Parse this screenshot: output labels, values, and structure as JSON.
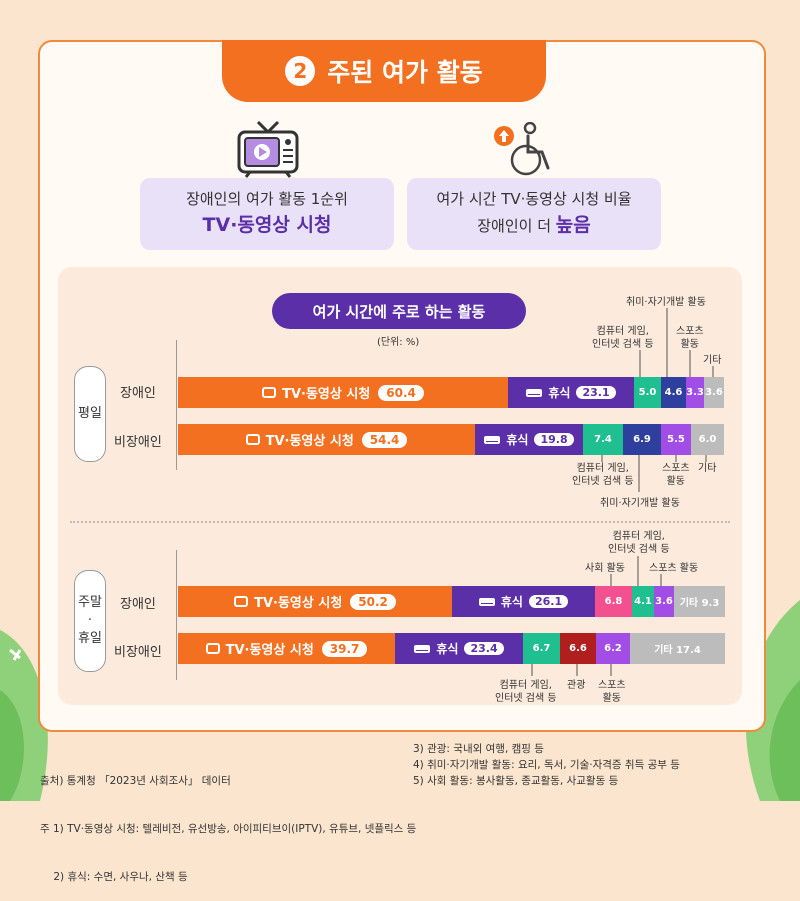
{
  "header": {
    "number": "2",
    "title": "주된 여가 활동"
  },
  "info_boxes": [
    {
      "line1": "장애인의 여가 활동 1순위",
      "line2": "TV·동영상 시청"
    },
    {
      "line1": "여가 시간 TV·동영상 시청 비율",
      "line2_pre": "장애인이 더 ",
      "line2_em": "높음"
    }
  ],
  "chart_data": {
    "type": "bar",
    "stacked": true,
    "orientation": "horizontal",
    "title": "여가 시간에 주로 하는 활동",
    "unit": "(단위: %)",
    "groups": [
      {
        "name": "평일",
        "rows": [
          {
            "name": "장애인",
            "segments": [
              {
                "label": "TV·동영상 시청",
                "value": 60.4,
                "color": "#f37021"
              },
              {
                "label": "휴식",
                "value": 23.1,
                "color": "#5b2fa8"
              },
              {
                "label": "컴퓨터 게임, 인터넷 검색 등",
                "value": 5.0,
                "color": "#1fbf8f"
              },
              {
                "label": "취미·자기개발 활동",
                "value": 4.6,
                "color": "#2e3f9e"
              },
              {
                "label": "스포츠 활동",
                "value": 3.3,
                "color": "#a24ee6"
              },
              {
                "label": "기타",
                "value": 3.6,
                "color": "#bcbcbc"
              }
            ]
          },
          {
            "name": "비장애인",
            "segments": [
              {
                "label": "TV·동영상 시청",
                "value": 54.4,
                "color": "#f37021"
              },
              {
                "label": "휴식",
                "value": 19.8,
                "color": "#5b2fa8"
              },
              {
                "label": "컴퓨터 게임, 인터넷 검색 등",
                "value": 7.4,
                "color": "#1fbf8f"
              },
              {
                "label": "취미·자기개발 활동",
                "value": 6.9,
                "color": "#2e3f9e"
              },
              {
                "label": "스포츠 활동",
                "value": 5.5,
                "color": "#a24ee6"
              },
              {
                "label": "기타",
                "value": 6.0,
                "color": "#bcbcbc"
              }
            ]
          }
        ]
      },
      {
        "name": "주말·휴일",
        "rows": [
          {
            "name": "장애인",
            "segments": [
              {
                "label": "TV·동영상 시청",
                "value": 50.2,
                "color": "#f37021"
              },
              {
                "label": "휴식",
                "value": 26.1,
                "color": "#5b2fa8"
              },
              {
                "label": "사회 활동",
                "value": 6.8,
                "color": "#f2508f"
              },
              {
                "label": "컴퓨터 게임, 인터넷 검색 등",
                "value": 4.1,
                "color": "#1fbf8f"
              },
              {
                "label": "스포츠 활동",
                "value": 3.6,
                "color": "#a24ee6"
              },
              {
                "label": "기타",
                "value": 9.3,
                "color": "#bcbcbc"
              }
            ]
          },
          {
            "name": "비장애인",
            "segments": [
              {
                "label": "TV·동영상 시청",
                "value": 39.7,
                "color": "#f37021"
              },
              {
                "label": "휴식",
                "value": 23.4,
                "color": "#5b2fa8"
              },
              {
                "label": "컴퓨터 게임, 인터넷 검색 등",
                "value": 6.7,
                "color": "#1fbf8f"
              },
              {
                "label": "관광",
                "value": 6.6,
                "color": "#b01e1e"
              },
              {
                "label": "스포츠 활동",
                "value": 6.2,
                "color": "#a24ee6"
              },
              {
                "label": "기타",
                "value": 17.4,
                "color": "#bcbcbc"
              }
            ]
          }
        ]
      }
    ],
    "annotations": {
      "hobby": "취미·자기개발 활동",
      "computer_l1": "컴퓨터 게임,",
      "computer_l2": "인터넷 검색 등",
      "sports_l1": "스포츠",
      "sports_l2": "활동",
      "other": "기타",
      "social": "사회 활동",
      "tour": "관광",
      "other_prefix": "기타",
      "tv": "TV·동영상 시청",
      "rest": "휴식"
    }
  },
  "group_labels": {
    "weekday": "평일",
    "weekend_l1": "주말",
    "weekend_dot": "·",
    "weekend_l2": "휴일"
  },
  "row_labels": {
    "disabled": "장애인",
    "nondisabled": "비장애인"
  },
  "footnotes": {
    "left": [
      "출처) 통계청 「2023년 사회조사」 데이터",
      "주 1) TV·동영상 시청: 텔레비전, 유선방송, 아이피티브이(IPTV), 유튜브, 넷플릭스 등",
      "    2) 휴식: 수면, 사우나, 산책 등"
    ],
    "right": [
      "3) 관광: 국내외 여행, 캠핑 등",
      "4) 취미·자기개발 활동: 요리, 독서, 기술·자격증 취득 공부 등",
      "5) 사회 활동: 봉사활동, 종교활동, 사교활동 등"
    ]
  }
}
